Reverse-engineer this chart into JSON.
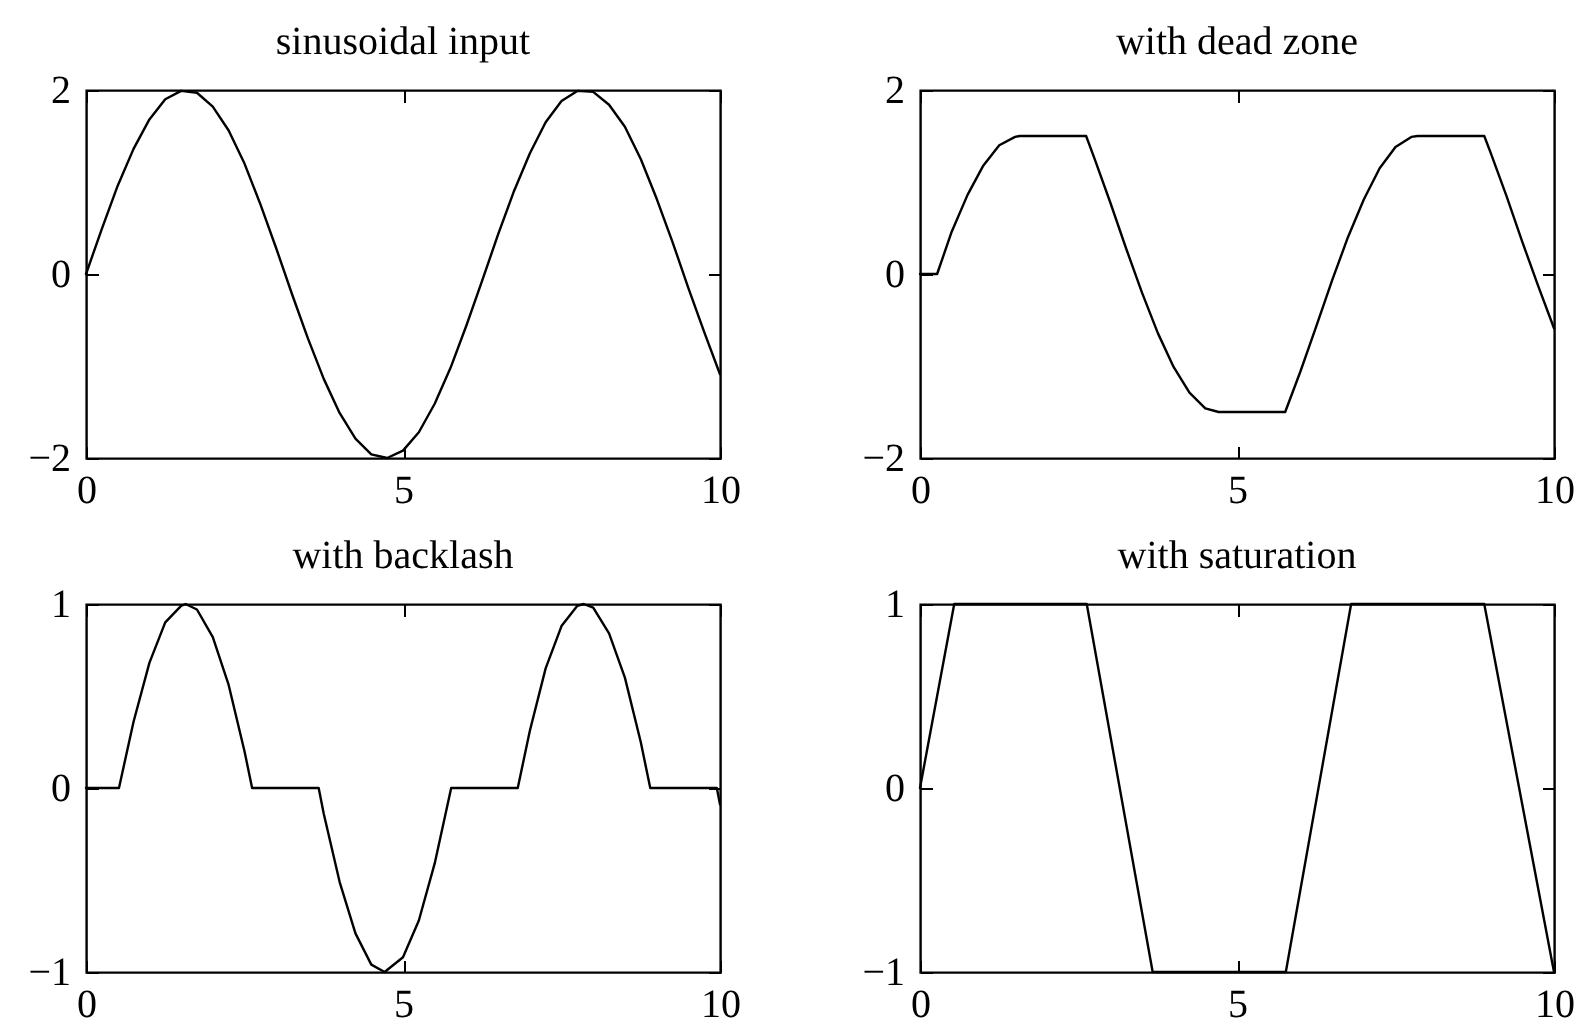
{
  "chart_data": [
    {
      "type": "line",
      "title": "sinusoidal input",
      "color": "#000000",
      "xlim": [
        0,
        10
      ],
      "xticks": [
        0,
        5,
        10
      ],
      "ylim": [
        -2,
        2
      ],
      "yticks": [
        -2,
        0,
        2
      ],
      "x": [
        0,
        0.25,
        0.5,
        0.75,
        1,
        1.25,
        1.5,
        1.75,
        2,
        2.25,
        2.5,
        2.75,
        3,
        3.25,
        3.5,
        3.75,
        4,
        4.25,
        4.5,
        4.75,
        5,
        5.25,
        5.5,
        5.75,
        6,
        6.25,
        6.5,
        6.75,
        7,
        7.25,
        7.5,
        7.75,
        8,
        8.25,
        8.5,
        8.75,
        9,
        9.25,
        9.5,
        9.75,
        10
      ],
      "values": [
        0,
        0.49,
        0.96,
        1.36,
        1.68,
        1.9,
        1.99,
        1.97,
        1.82,
        1.56,
        1.2,
        0.76,
        0.28,
        -0.22,
        -0.7,
        -1.14,
        -1.51,
        -1.79,
        -1.96,
        -2,
        -1.92,
        -1.72,
        -1.41,
        -1.02,
        -0.56,
        -0.07,
        0.43,
        0.9,
        1.31,
        1.65,
        1.88,
        1.99,
        1.98,
        1.84,
        1.6,
        1.25,
        0.82,
        0.35,
        -0.15,
        -0.63,
        -1.09
      ]
    },
    {
      "type": "line",
      "title": "with dead zone",
      "color": "#000000",
      "xlim": [
        0,
        10
      ],
      "xticks": [
        0,
        5,
        10
      ],
      "ylim": [
        -2,
        2
      ],
      "yticks": [
        -2,
        0,
        2
      ],
      "x": [
        0,
        0.27,
        0.5,
        0.75,
        1,
        1.25,
        1.5,
        1.57,
        2.62,
        2.75,
        3,
        3.25,
        3.5,
        3.75,
        4,
        4.25,
        4.5,
        4.71,
        5.76,
        6,
        6.25,
        6.5,
        6.75,
        7,
        7.25,
        7.5,
        7.75,
        7.85,
        8.9,
        9,
        9.25,
        9.5,
        9.75,
        10
      ],
      "values": [
        0,
        0,
        0.46,
        0.86,
        1.18,
        1.4,
        1.49,
        1.5,
        1.5,
        1.26,
        0.78,
        0.28,
        -0.2,
        -0.64,
        -1.01,
        -1.29,
        -1.46,
        -1.5,
        -1.5,
        -1.06,
        -0.57,
        -0.07,
        0.4,
        0.81,
        1.15,
        1.38,
        1.49,
        1.5,
        1.5,
        1.32,
        0.85,
        0.35,
        -0.13,
        -0.59
      ]
    },
    {
      "type": "line",
      "title": "with backlash",
      "color": "#000000",
      "xlim": [
        0,
        10
      ],
      "xticks": [
        0,
        5,
        10
      ],
      "ylim": [
        -1,
        1
      ],
      "yticks": [
        -1,
        0,
        1
      ],
      "x": [
        0,
        0.52,
        0.75,
        1,
        1.25,
        1.5,
        1.57,
        1.75,
        2,
        2.25,
        2.5,
        2.62,
        3.67,
        3.75,
        4,
        4.25,
        4.5,
        4.71,
        5,
        5.25,
        5.5,
        5.76,
        6.81,
        7,
        7.25,
        7.5,
        7.75,
        7.85,
        8,
        8.25,
        8.5,
        8.75,
        8.9,
        9.95,
        10
      ],
      "values": [
        0,
        0,
        0.36,
        0.68,
        0.9,
        0.99,
        1,
        0.97,
        0.82,
        0.56,
        0.2,
        0,
        0,
        -0.14,
        -0.51,
        -0.79,
        -0.96,
        -1,
        -0.92,
        -0.72,
        -0.41,
        0,
        0,
        0.31,
        0.65,
        0.88,
        0.99,
        1,
        0.98,
        0.84,
        0.6,
        0.25,
        0,
        0,
        -0.09
      ]
    },
    {
      "type": "line",
      "title": "with saturation",
      "color": "#000000",
      "xlim": [
        0,
        10
      ],
      "xticks": [
        0,
        5,
        10
      ],
      "ylim": [
        -1,
        1
      ],
      "yticks": [
        -1,
        0,
        1
      ],
      "x": [
        0,
        0.54,
        2.63,
        3.67,
        5.77,
        6.8,
        8.9,
        10
      ],
      "values": [
        0,
        1,
        1,
        -1,
        -1,
        1,
        1,
        -1
      ]
    }
  ]
}
